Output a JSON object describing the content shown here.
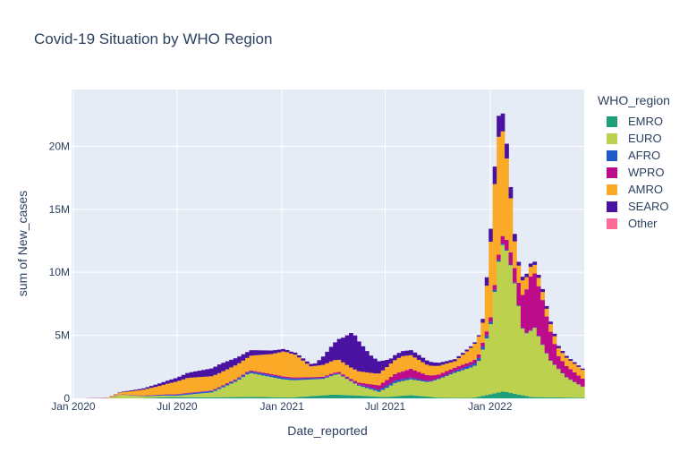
{
  "chart_data": {
    "type": "bar",
    "title": "Covid-19 Situation by WHO Region",
    "xlabel": "Date_reported",
    "ylabel": "sum of New_cases",
    "x_ticks": [
      "Jan 2020",
      "Jul 2020",
      "Jan 2021",
      "Jul 2021",
      "Jan 2022"
    ],
    "y_ticks": [
      "0",
      "5M",
      "10M",
      "15M",
      "20M"
    ],
    "ylim": [
      0,
      24500000
    ],
    "xlim": [
      "2019-12-29",
      "2022-06-15"
    ],
    "grid": true,
    "stacked": true,
    "legend_title": "WHO_region",
    "legend_position": "right",
    "series": [
      {
        "name": "EMRO",
        "color": "#1f9e79",
        "points": [
          [
            "2020-03-01",
            2000
          ],
          [
            "2020-05-01",
            15000
          ],
          [
            "2020-06-15",
            100000
          ],
          [
            "2020-09-01",
            80000
          ],
          [
            "2020-11-15",
            120000
          ],
          [
            "2021-01-15",
            60000
          ],
          [
            "2021-04-01",
            300000
          ],
          [
            "2021-05-15",
            220000
          ],
          [
            "2021-07-01",
            100000
          ],
          [
            "2021-08-15",
            260000
          ],
          [
            "2021-10-01",
            60000
          ],
          [
            "2021-12-01",
            30000
          ],
          [
            "2022-01-25",
            550000
          ],
          [
            "2022-02-15",
            350000
          ],
          [
            "2022-03-15",
            100000
          ],
          [
            "2022-06-15",
            40000
          ]
        ]
      },
      {
        "name": "EURO",
        "color": "#bcd14d",
        "points": [
          [
            "2020-03-01",
            20000
          ],
          [
            "2020-03-25",
            300000
          ],
          [
            "2020-05-01",
            150000
          ],
          [
            "2020-07-01",
            120000
          ],
          [
            "2020-09-01",
            400000
          ],
          [
            "2020-10-15",
            1300000
          ],
          [
            "2020-11-05",
            1900000
          ],
          [
            "2021-01-01",
            1450000
          ],
          [
            "2021-01-25",
            1350000
          ],
          [
            "2021-03-15",
            1300000
          ],
          [
            "2021-04-10",
            1650000
          ],
          [
            "2021-05-15",
            800000
          ],
          [
            "2021-06-20",
            400000
          ],
          [
            "2021-07-20",
            1100000
          ],
          [
            "2021-08-15",
            1250000
          ],
          [
            "2021-09-15",
            1150000
          ],
          [
            "2021-11-01",
            2000000
          ],
          [
            "2021-12-10",
            2600000
          ],
          [
            "2022-01-01",
            5200000
          ],
          [
            "2022-01-15",
            10200000
          ],
          [
            "2022-01-25",
            12000000
          ],
          [
            "2022-02-10",
            9500000
          ],
          [
            "2022-03-01",
            4800000
          ],
          [
            "2022-03-20",
            5500000
          ],
          [
            "2022-04-15",
            3000000
          ],
          [
            "2022-05-15",
            1600000
          ],
          [
            "2022-06-15",
            800000
          ]
        ]
      },
      {
        "name": "AFRO",
        "color": "#1f5bc7",
        "points": [
          [
            "2020-04-01",
            2000
          ],
          [
            "2020-07-20",
            90000
          ],
          [
            "2020-12-30",
            150000
          ],
          [
            "2021-05-01",
            50000
          ],
          [
            "2021-07-10",
            200000
          ],
          [
            "2021-10-01",
            60000
          ],
          [
            "2021-12-20",
            250000
          ],
          [
            "2022-02-01",
            60000
          ],
          [
            "2022-06-15",
            20000
          ]
        ]
      },
      {
        "name": "WPRO",
        "color": "#bd0c8b",
        "points": [
          [
            "2020-01-20",
            0
          ],
          [
            "2020-02-05",
            20000
          ],
          [
            "2020-07-01",
            40000
          ],
          [
            "2020-09-01",
            50000
          ],
          [
            "2020-12-15",
            100000
          ],
          [
            "2021-03-01",
            80000
          ],
          [
            "2021-05-15",
            150000
          ],
          [
            "2021-07-15",
            500000
          ],
          [
            "2021-08-15",
            700000
          ],
          [
            "2021-10-01",
            300000
          ],
          [
            "2021-12-01",
            250000
          ],
          [
            "2022-01-15",
            400000
          ],
          [
            "2022-02-15",
            1200000
          ],
          [
            "2022-03-15",
            4500000
          ],
          [
            "2022-04-01",
            3700000
          ],
          [
            "2022-05-01",
            1000000
          ],
          [
            "2022-06-15",
            600000
          ]
        ]
      },
      {
        "name": "AMRO",
        "color": "#fbaa28",
        "points": [
          [
            "2020-03-01",
            10000
          ],
          [
            "2020-04-01",
            200000
          ],
          [
            "2020-06-01",
            700000
          ],
          [
            "2020-07-20",
            1200000
          ],
          [
            "2020-09-15",
            1100000
          ],
          [
            "2020-11-01",
            1100000
          ],
          [
            "2020-12-15",
            1600000
          ],
          [
            "2021-01-05",
            2000000
          ],
          [
            "2021-01-25",
            1800000
          ],
          [
            "2021-02-20",
            850000
          ],
          [
            "2021-04-01",
            1000000
          ],
          [
            "2021-05-01",
            900000
          ],
          [
            "2021-06-15",
            900000
          ],
          [
            "2021-08-01",
            1200000
          ],
          [
            "2021-09-15",
            800000
          ],
          [
            "2021-11-01",
            500000
          ],
          [
            "2021-12-20",
            1600000
          ],
          [
            "2022-01-05",
            7000000
          ],
          [
            "2022-01-15",
            9500000
          ],
          [
            "2022-01-25",
            8000000
          ],
          [
            "2022-02-15",
            1500000
          ],
          [
            "2022-03-15",
            700000
          ],
          [
            "2022-04-15",
            600000
          ],
          [
            "2022-06-15",
            700000
          ]
        ]
      },
      {
        "name": "SEARO",
        "color": "#4a12a0",
        "points": [
          [
            "2020-03-01",
            1000
          ],
          [
            "2020-05-01",
            100000
          ],
          [
            "2020-07-01",
            300000
          ],
          [
            "2020-09-15",
            700000
          ],
          [
            "2020-11-15",
            400000
          ],
          [
            "2021-01-15",
            150000
          ],
          [
            "2021-03-01",
            200000
          ],
          [
            "2021-04-15",
            1800000
          ],
          [
            "2021-05-05",
            2900000
          ],
          [
            "2021-06-05",
            1400000
          ],
          [
            "2021-07-10",
            400000
          ],
          [
            "2021-08-25",
            400000
          ],
          [
            "2021-10-15",
            200000
          ],
          [
            "2021-12-15",
            100000
          ],
          [
            "2022-01-15",
            1700000
          ],
          [
            "2022-02-01",
            1100000
          ],
          [
            "2022-02-20",
            300000
          ],
          [
            "2022-06-15",
            100000
          ]
        ]
      },
      {
        "name": "Other",
        "color": "#fc6c96",
        "points": [
          [
            "2020-02-05",
            0
          ],
          [
            "2020-02-12",
            1500
          ],
          [
            "2020-02-26",
            600
          ],
          [
            "2020-03-10",
            0
          ],
          [
            "2022-06-15",
            0
          ]
        ]
      }
    ]
  }
}
